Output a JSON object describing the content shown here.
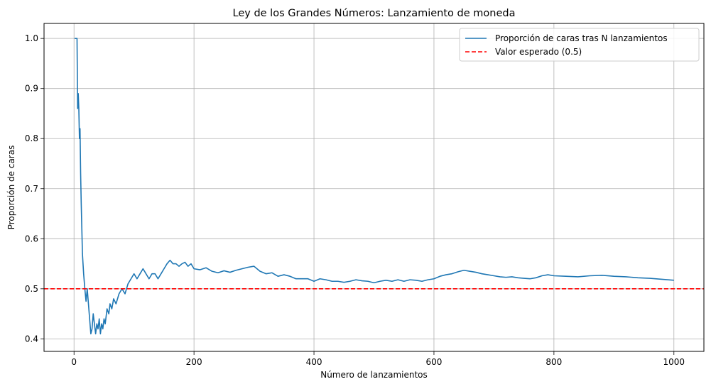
{
  "chart_data": {
    "type": "line",
    "title": "Ley de los Grandes Números: Lanzamiento de moneda",
    "xlabel": "Número de lanzamientos",
    "ylabel": "Proporción de caras",
    "xlim": [
      -50,
      1050
    ],
    "ylim": [
      0.375,
      1.03
    ],
    "xticks": [
      0,
      200,
      400,
      600,
      800,
      1000
    ],
    "yticks": [
      0.4,
      0.5,
      0.6,
      0.7,
      0.8,
      0.9,
      1.0
    ],
    "xtick_labels": [
      "0",
      "200",
      "400",
      "600",
      "800",
      "1000"
    ],
    "ytick_labels": [
      "0.4",
      "0.5",
      "0.6",
      "0.7",
      "0.8",
      "0.9",
      "1.0"
    ],
    "grid": true,
    "legend_position": "top-right",
    "series": [
      {
        "name": "Proporción de caras tras N lanzamientos",
        "color": "#1f77b4",
        "style": "solid",
        "x": [
          1,
          2,
          3,
          4,
          5,
          6,
          7,
          8,
          9,
          10,
          11,
          12,
          13,
          14,
          16,
          18,
          20,
          22,
          24,
          26,
          28,
          30,
          32,
          34,
          36,
          38,
          40,
          42,
          44,
          46,
          48,
          50,
          52,
          55,
          58,
          60,
          63,
          66,
          70,
          75,
          80,
          85,
          90,
          95,
          100,
          105,
          110,
          115,
          120,
          125,
          130,
          135,
          140,
          145,
          150,
          155,
          160,
          165,
          170,
          175,
          180,
          185,
          190,
          195,
          200,
          210,
          220,
          230,
          240,
          250,
          260,
          270,
          280,
          290,
          300,
          310,
          320,
          330,
          340,
          350,
          360,
          370,
          380,
          390,
          400,
          410,
          420,
          430,
          440,
          450,
          460,
          470,
          480,
          490,
          500,
          510,
          520,
          530,
          540,
          550,
          560,
          570,
          580,
          590,
          600,
          610,
          620,
          630,
          640,
          650,
          660,
          670,
          680,
          690,
          700,
          710,
          720,
          730,
          740,
          750,
          760,
          770,
          780,
          790,
          800,
          820,
          840,
          860,
          880,
          900,
          920,
          940,
          960,
          980,
          1000
        ],
        "y": [
          1.0,
          1.0,
          1.0,
          1.0,
          1.0,
          0.86,
          0.89,
          0.86,
          0.8,
          0.82,
          0.73,
          0.67,
          0.62,
          0.57,
          0.53,
          0.5,
          0.475,
          0.5,
          0.47,
          0.44,
          0.41,
          0.42,
          0.45,
          0.43,
          0.41,
          0.43,
          0.42,
          0.44,
          0.41,
          0.43,
          0.42,
          0.44,
          0.43,
          0.46,
          0.45,
          0.47,
          0.46,
          0.48,
          0.47,
          0.49,
          0.5,
          0.49,
          0.51,
          0.52,
          0.53,
          0.52,
          0.53,
          0.54,
          0.53,
          0.52,
          0.53,
          0.53,
          0.52,
          0.53,
          0.54,
          0.55,
          0.557,
          0.55,
          0.55,
          0.545,
          0.55,
          0.553,
          0.545,
          0.55,
          0.54,
          0.538,
          0.542,
          0.535,
          0.532,
          0.536,
          0.533,
          0.537,
          0.54,
          0.543,
          0.545,
          0.535,
          0.53,
          0.532,
          0.525,
          0.528,
          0.525,
          0.52,
          0.52,
          0.52,
          0.515,
          0.52,
          0.518,
          0.515,
          0.515,
          0.513,
          0.515,
          0.518,
          0.516,
          0.515,
          0.512,
          0.515,
          0.517,
          0.515,
          0.518,
          0.515,
          0.518,
          0.517,
          0.515,
          0.518,
          0.52,
          0.525,
          0.528,
          0.53,
          0.534,
          0.537,
          0.535,
          0.533,
          0.53,
          0.528,
          0.526,
          0.524,
          0.523,
          0.524,
          0.522,
          0.521,
          0.52,
          0.522,
          0.526,
          0.528,
          0.526,
          0.525,
          0.524,
          0.526,
          0.527,
          0.525,
          0.524,
          0.522,
          0.521,
          0.519,
          0.517
        ]
      },
      {
        "name": "Valor esperado (0.5)",
        "color": "#ff0000",
        "style": "dashed",
        "x": [
          -50,
          1050
        ],
        "y": [
          0.5,
          0.5
        ]
      }
    ]
  }
}
